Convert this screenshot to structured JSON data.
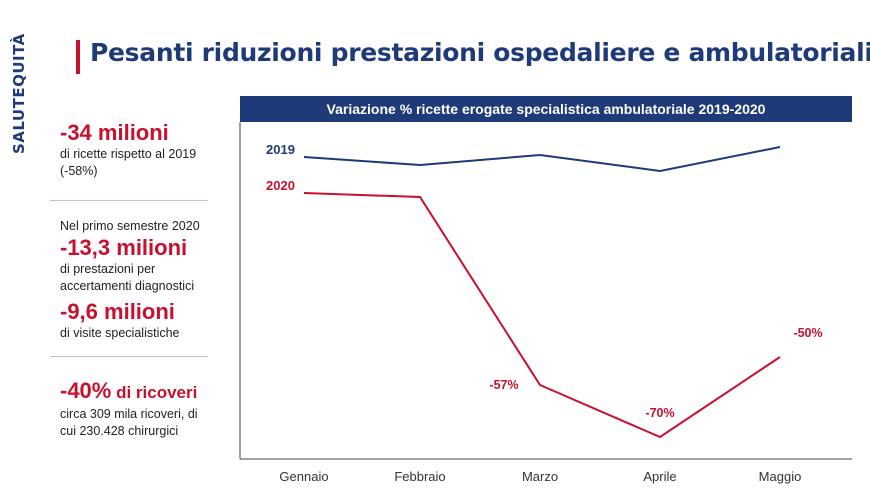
{
  "logo": "SALUTEQUITÀ",
  "title": "Pesanti riduzioni prestazioni ospedaliere e ambulatoriali",
  "stats": {
    "s1_big": "-34 milioni",
    "s1_desc": "di ricette rispetto al 2019 (-58%)",
    "s2_intro": "Nel primo semestre 2020",
    "s2_big": "-13,3 milioni",
    "s2_desc": "di prestazioni per accertamenti diagnostici",
    "s3_big": "-9,6 milioni",
    "s3_desc": "di visite specialistiche",
    "s4_big_a": "-40%",
    "s4_big_b": " di ricoveri",
    "s4_desc": "circa 309 mila ricoveri, di cui 230.428 chirurgici"
  },
  "colors": {
    "navy": "#1e3a78",
    "red": "#c8102e"
  },
  "chart_data": {
    "type": "line",
    "title": "Variazione % ricette erogate specialistica ambulatoriale 2019-2020",
    "categories": [
      "Gennaio",
      "Febbraio",
      "Marzo",
      "Aprile",
      "Maggio"
    ],
    "series": [
      {
        "name": "2019",
        "color": "#1e3a78",
        "values": [
          0,
          -2,
          0.5,
          -3.5,
          2.5
        ],
        "labels": [
          "",
          "",
          "",
          "",
          ""
        ]
      },
      {
        "name": "2020",
        "color": "#c8102e",
        "values": [
          -9,
          -10,
          -57,
          -70,
          -50
        ],
        "labels": [
          "",
          "",
          "-57%",
          "-70%",
          "-50%"
        ]
      }
    ],
    "ylim": [
      -70,
      2.5
    ],
    "grid": false
  }
}
